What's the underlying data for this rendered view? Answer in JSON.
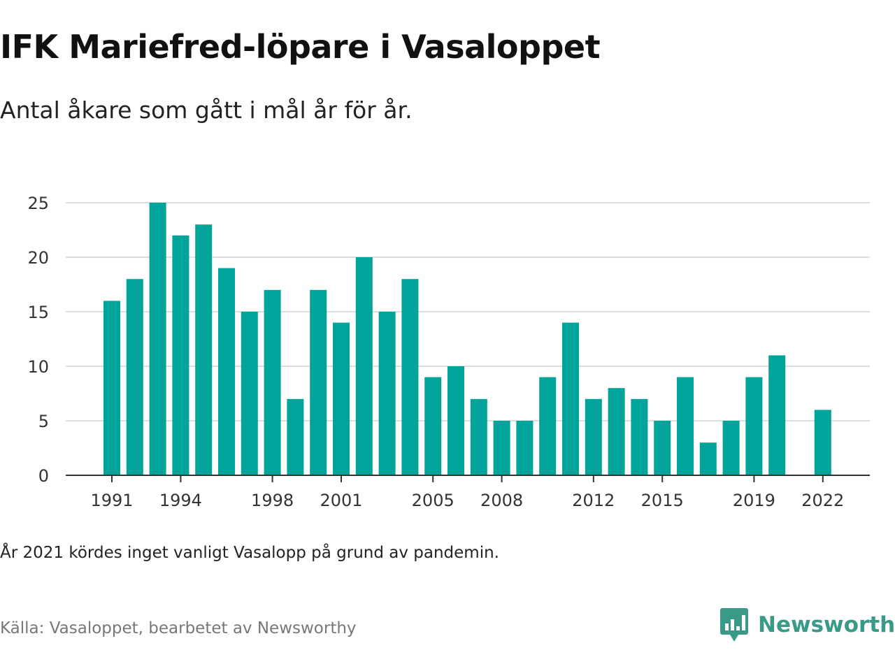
{
  "title": "IFK Mariefred-löpare i Vasaloppet",
  "subtitle": "Antal åkare som gått i mål år för år.",
  "note": "År 2021 kördes inget vanligt Vasalopp på grund av pandemin.",
  "source": "Källa: Vasaloppet, bearbetet av Newsworthy",
  "brand": {
    "name": "Newsworthy",
    "icon": "newsworthy-logo-icon",
    "color": "#3a9a88"
  },
  "chart_data": {
    "type": "bar",
    "bar_color": "#00a49a",
    "grid": true,
    "ylim": [
      0,
      25
    ],
    "yticks": [
      0,
      5,
      10,
      15,
      20,
      25
    ],
    "xtick_labels": [
      1991,
      1994,
      1998,
      2001,
      2005,
      2008,
      2012,
      2015,
      2019,
      2022
    ],
    "categories": [
      1991,
      1992,
      1993,
      1994,
      1995,
      1996,
      1997,
      1998,
      1999,
      2000,
      2001,
      2002,
      2003,
      2004,
      2005,
      2006,
      2007,
      2008,
      2009,
      2010,
      2011,
      2012,
      2013,
      2014,
      2015,
      2016,
      2017,
      2018,
      2019,
      2020,
      2021,
      2022
    ],
    "values": [
      16,
      18,
      25,
      22,
      23,
      19,
      15,
      17,
      7,
      17,
      14,
      20,
      15,
      18,
      9,
      10,
      7,
      5,
      5,
      9,
      14,
      7,
      8,
      7,
      5,
      9,
      3,
      5,
      9,
      11,
      null,
      6
    ]
  }
}
